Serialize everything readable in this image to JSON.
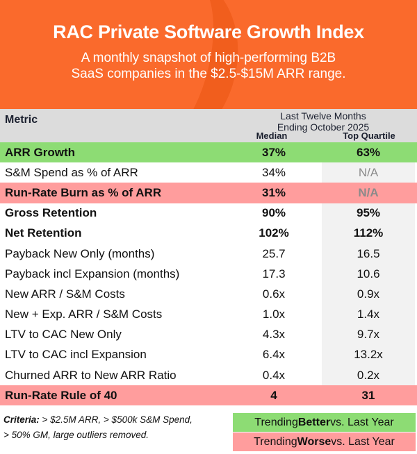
{
  "header": {
    "title": "RAC Private Software Growth Index",
    "subtitle_line1": "A monthly snapshot of high-performing B2B",
    "subtitle_line2": "SaaS companies in the $2.5-$15M ARR range."
  },
  "table": {
    "metric_header": "Metric",
    "period_line1": "Last Twelve Months",
    "period_line2": "Ending October  2025",
    "col_median": "Median",
    "col_top": "Top Quartile",
    "rows": [
      {
        "metric": "ARR Growth",
        "median": "37%",
        "top": "63%",
        "style": "green bold"
      },
      {
        "metric": "S&M Spend as % of ARR",
        "median": "34%",
        "top": "N/A",
        "style": ""
      },
      {
        "metric": "Run-Rate Burn as % of ARR",
        "median": "31%",
        "top": "N/A",
        "style": "red bold"
      },
      {
        "metric": "Gross Retention",
        "median": "90%",
        "top": "95%",
        "style": "bold"
      },
      {
        "metric": "Net Retention",
        "median": "102%",
        "top": "112%",
        "style": "bold"
      },
      {
        "metric": "Payback New Only (months)",
        "median": "25.7",
        "top": "16.5",
        "style": ""
      },
      {
        "metric": "Payback incl Expansion (months)",
        "median": "17.3",
        "top": "10.6",
        "style": ""
      },
      {
        "metric": "New ARR / S&M Costs",
        "median": "0.6x",
        "top": "0.9x",
        "style": ""
      },
      {
        "metric": "New + Exp. ARR / S&M Costs",
        "median": "1.0x",
        "top": "1.4x",
        "style": ""
      },
      {
        "metric": "LTV to CAC New Only",
        "median": "4.3x",
        "top": "9.7x",
        "style": ""
      },
      {
        "metric": "LTV to CAC incl Expansion",
        "median": "6.4x",
        "top": "13.2x",
        "style": ""
      },
      {
        "metric": "Churned ARR to New ARR Ratio",
        "median": "0.4x",
        "top": "0.2x",
        "style": ""
      },
      {
        "metric": "Run-Rate Rule of 40",
        "median": "4",
        "top": "31",
        "style": "red bold"
      }
    ]
  },
  "footer": {
    "criteria_label": "Criteria:",
    "criteria_text1": " > $2.5M ARR, > $500k S&M Spend,",
    "criteria_text2": "> 50% GM, large outliers removed.",
    "legend_better_pre": "Trending ",
    "legend_better_bold": "Better",
    "legend_better_post": " vs. Last Year",
    "legend_worse_pre": "Trending ",
    "legend_worse_bold": "Worse",
    "legend_worse_post": " vs. Last Year"
  },
  "colors": {
    "orange": "#fa6a2c",
    "green": "#8ddc74",
    "red": "#ff9d9d",
    "header_gray": "#dcdcdc"
  }
}
